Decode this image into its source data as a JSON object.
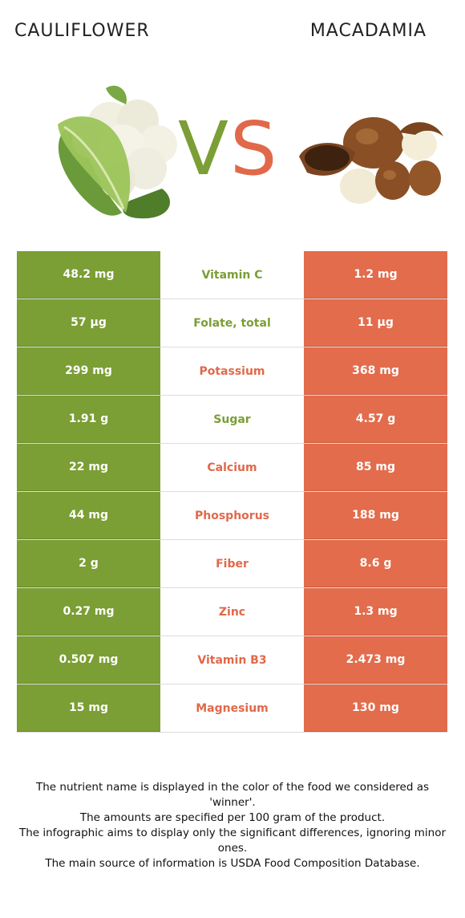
{
  "header": {
    "left_food": "CAULIFLOWER",
    "right_food": "MACADAMIA",
    "vs_v": "V",
    "vs_s": "S"
  },
  "colors": {
    "winner_left": "#7b9e35",
    "winner_right": "#e36c4c"
  },
  "rows": [
    {
      "left": "48.2 mg",
      "nutrient": "Vitamin C",
      "right": "1.2 mg",
      "winner": "left"
    },
    {
      "left": "57 µg",
      "nutrient": "Folate, total",
      "right": "11 µg",
      "winner": "left"
    },
    {
      "left": "299 mg",
      "nutrient": "Potassium",
      "right": "368 mg",
      "winner": "right"
    },
    {
      "left": "1.91 g",
      "nutrient": "Sugar",
      "right": "4.57 g",
      "winner": "left"
    },
    {
      "left": "22 mg",
      "nutrient": "Calcium",
      "right": "85 mg",
      "winner": "right"
    },
    {
      "left": "44 mg",
      "nutrient": "Phosphorus",
      "right": "188 mg",
      "winner": "right"
    },
    {
      "left": "2 g",
      "nutrient": "Fiber",
      "right": "8.6 g",
      "winner": "right"
    },
    {
      "left": "0.27 mg",
      "nutrient": "Zinc",
      "right": "1.3 mg",
      "winner": "right"
    },
    {
      "left": "0.507 mg",
      "nutrient": "Vitamin B3",
      "right": "2.473 mg",
      "winner": "right"
    },
    {
      "left": "15 mg",
      "nutrient": "Magnesium",
      "right": "130 mg",
      "winner": "right"
    }
  ],
  "footer": {
    "line1": "The nutrient name is displayed in the color of the food we considered as 'winner'.",
    "line2": "The amounts are specified per 100 gram of the product.",
    "line3": "The infographic aims to display only the significant differences, ignoring minor ones.",
    "line4": "The main source of information is USDA Food Composition Database."
  }
}
